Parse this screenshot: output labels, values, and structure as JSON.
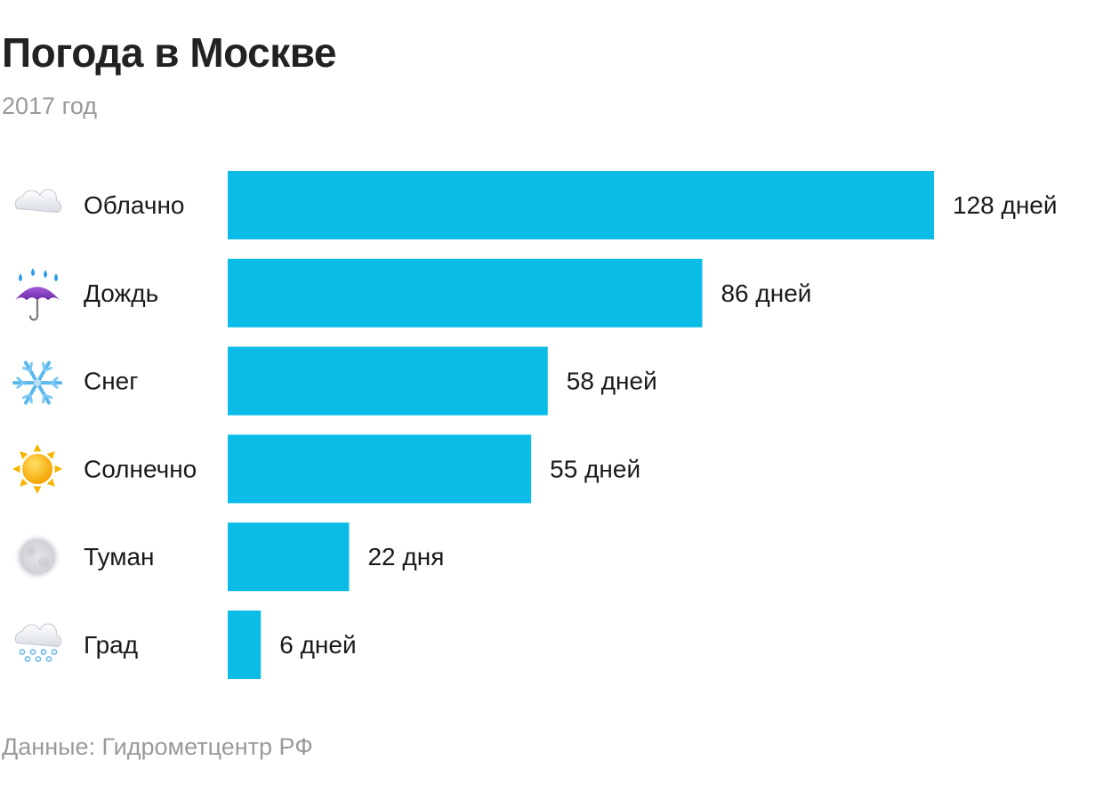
{
  "header": {
    "title": "Погода в Москве",
    "subtitle": "2017 год"
  },
  "footer": {
    "source": "Данные: Гидрометцентр РФ"
  },
  "chart_data": {
    "type": "bar",
    "orientation": "horizontal",
    "categories": [
      "Облачно",
      "Дождь",
      "Снег",
      "Солнечно",
      "Туман",
      "Град"
    ],
    "values": [
      128,
      86,
      58,
      55,
      22,
      6
    ],
    "value_labels": [
      "128 дней",
      "86 дней",
      "58 дней",
      "55 дней",
      "22 дня",
      "6 дней"
    ],
    "icons": [
      "cloud-icon",
      "umbrella-rain-icon",
      "snowflake-icon",
      "sun-icon",
      "fog-icon",
      "hail-cloud-icon"
    ],
    "bar_color": "#0bbde6",
    "xlim": [
      0,
      128
    ],
    "grid": false,
    "legend": "none"
  }
}
